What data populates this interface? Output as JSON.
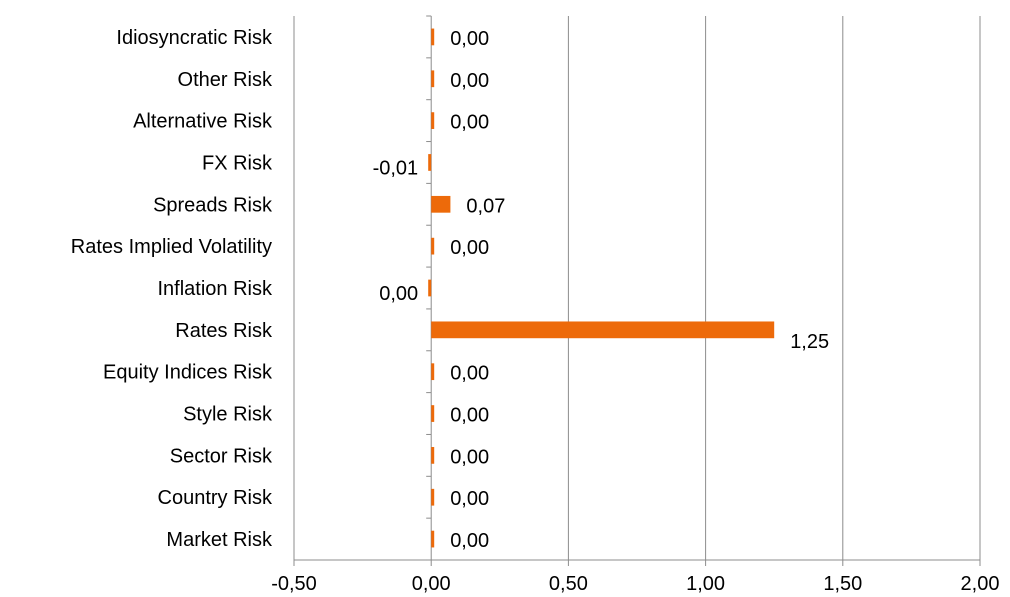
{
  "chart_data": {
    "type": "bar",
    "orientation": "horizontal",
    "title": "",
    "xlabel": "",
    "ylabel": "",
    "categories": [
      "Idiosyncratic Risk",
      "Other Risk",
      "Alternative Risk",
      "FX Risk",
      "Spreads Risk",
      "Rates Implied Volatility",
      "Inflation  Risk",
      "Rates Risk",
      "Equity Indices Risk",
      "Style Risk",
      "Sector Risk",
      "Country Risk",
      "Market Risk"
    ],
    "values": [
      0.003,
      0.0,
      0.0,
      -0.01,
      0.07,
      0.003,
      -0.003,
      1.25,
      0.0,
      0.0,
      0.0,
      0.0,
      0.0
    ],
    "data_labels": [
      "0,00",
      "0,00",
      "0,00",
      "-0,01",
      "0,07",
      "0,00",
      "0,00",
      "1,25",
      "0,00",
      "0,00",
      "0,00",
      "0,00",
      "0,00"
    ],
    "xlim": [
      -0.5,
      2.0
    ],
    "xticks": [
      -0.5,
      0.0,
      0.5,
      1.0,
      1.5,
      2.0
    ],
    "xtick_labels": [
      "-0,50",
      "0,00",
      "0,50",
      "1,00",
      "1,50",
      "2,00"
    ],
    "grid": "vertical",
    "legend": "none",
    "bar_color": "#ed6a0a"
  }
}
